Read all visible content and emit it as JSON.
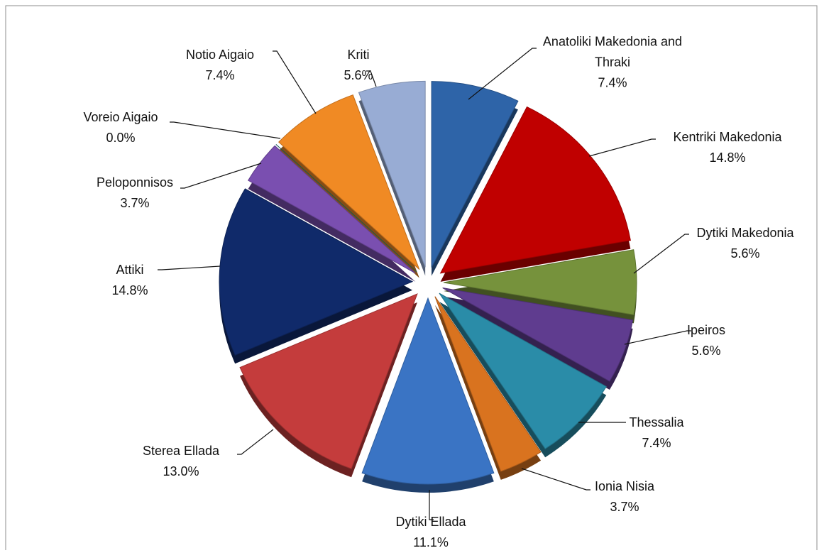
{
  "chart_data": {
    "type": "pie",
    "categories": [
      "Anatoliki Makedonia and Thraki",
      "Kentriki Makedonia",
      "Dytiki Makedonia",
      "Ipeiros",
      "Thessalia",
      "Ionia Nisia",
      "Dytiki Ellada",
      "Sterea Ellada",
      "Attiki",
      "Peloponnisos",
      "Voreio Aigaio",
      "Notio Aigaio",
      "Kriti"
    ],
    "values": [
      7.4,
      14.8,
      5.6,
      5.6,
      7.4,
      3.7,
      11.1,
      13.0,
      14.8,
      3.7,
      0.0,
      7.4,
      5.6
    ],
    "value_labels": [
      "7.4%",
      "14.8%",
      "5.6%",
      "5.6%",
      "7.4%",
      "3.7%",
      "11.1%",
      "13.0%",
      "14.8%",
      "3.7%",
      "0.0%",
      "7.4%",
      "5.6%"
    ],
    "colors": [
      "#2e64a8",
      "#c00000",
      "#76923c",
      "#5f3c8f",
      "#2a8ca8",
      "#d9731f",
      "#3a74c4",
      "#c43c3c",
      "#102a6a",
      "#7a4fb0",
      "#1a6a6a",
      "#f08a24",
      "#98acd4"
    ]
  }
}
